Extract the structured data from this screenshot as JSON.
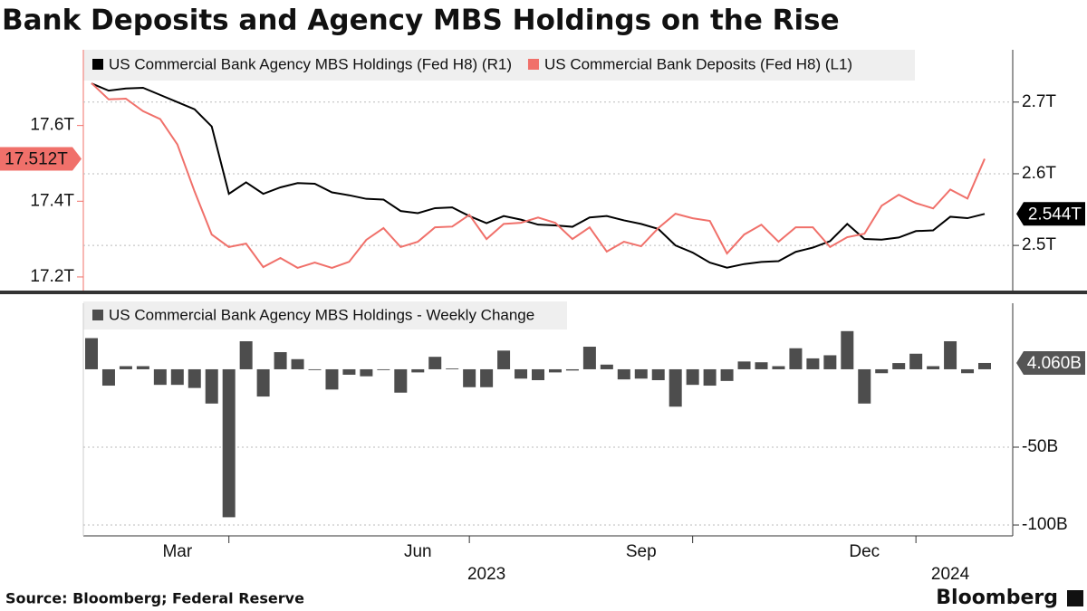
{
  "title": "Bank Deposits and Agency MBS Holdings on the Rise",
  "source": "Source:  Bloomberg; Federal Reserve",
  "brand": "Bloomberg",
  "chart_data": [
    {
      "type": "line",
      "ylim": [
        17.164,
        17.8
      ],
      "yticks": [
        {
          "value": 17.2,
          "label": "17.2T"
        },
        {
          "value": 17.4,
          "label": "17.4T"
        },
        {
          "value": 17.6,
          "label": "17.6T"
        }
      ],
      "y2lim": [
        2.437,
        2.773
      ],
      "y2ticks": [
        {
          "value": 2.5,
          "label": "2.5T"
        },
        {
          "value": 2.6,
          "label": "2.6T"
        },
        {
          "value": 2.7,
          "label": "2.7T"
        }
      ],
      "grid": true,
      "series": [
        {
          "name": "US Commercial Bank Agency MBS Holdings (Fed H8) (R1)",
          "color": "#000000",
          "axis": "y2",
          "last_label": "2.544T",
          "values": [
            2.726,
            2.716,
            2.719,
            2.72,
            2.71,
            2.7,
            2.69,
            2.666,
            2.572,
            2.588,
            2.572,
            2.581,
            2.587,
            2.586,
            2.574,
            2.57,
            2.565,
            2.564,
            2.548,
            2.545,
            2.552,
            2.553,
            2.541,
            2.531,
            2.541,
            2.536,
            2.529,
            2.528,
            2.526,
            2.539,
            2.541,
            2.535,
            2.53,
            2.523,
            2.5,
            2.49,
            2.476,
            2.469,
            2.474,
            2.477,
            2.478,
            2.491,
            2.497,
            2.506,
            2.53,
            2.509,
            2.508,
            2.511,
            2.52,
            2.521,
            2.54,
            2.538,
            2.544
          ]
        },
        {
          "name": "US Commercial Bank Deposits (Fed H8) (L1)",
          "color": "#f0706a",
          "axis": "y",
          "last_label": "17.512T",
          "values": [
            17.712,
            17.669,
            17.671,
            17.638,
            17.617,
            17.55,
            17.426,
            17.312,
            17.279,
            17.288,
            17.226,
            17.25,
            17.224,
            17.238,
            17.224,
            17.24,
            17.298,
            17.329,
            17.279,
            17.293,
            17.331,
            17.333,
            17.364,
            17.3,
            17.34,
            17.343,
            17.357,
            17.343,
            17.3,
            17.331,
            17.267,
            17.293,
            17.281,
            17.329,
            17.367,
            17.355,
            17.348,
            17.262,
            17.312,
            17.338,
            17.293,
            17.331,
            17.331,
            17.279,
            17.305,
            17.314,
            17.388,
            17.417,
            17.395,
            17.381,
            17.431,
            17.407,
            17.512
          ]
        }
      ]
    },
    {
      "type": "bar",
      "categories": [
        null,
        null,
        null,
        null,
        null,
        "Mar",
        null,
        null,
        null,
        null,
        null,
        null,
        null,
        null,
        null,
        null,
        null,
        null,
        null,
        "Jun",
        null,
        null,
        null,
        null,
        null,
        null,
        null,
        null,
        null,
        null,
        null,
        null,
        "Sep",
        null,
        null,
        null,
        null,
        null,
        null,
        null,
        null,
        null,
        null,
        null,
        null,
        "Dec",
        null,
        null,
        null,
        null,
        null,
        null,
        null
      ],
      "year_categories": [
        null,
        null,
        null,
        null,
        null,
        null,
        null,
        null,
        null,
        null,
        null,
        null,
        null,
        null,
        null,
        null,
        null,
        null,
        null,
        null,
        null,
        null,
        null,
        "2023",
        null,
        null,
        null,
        null,
        null,
        null,
        null,
        null,
        null,
        null,
        null,
        null,
        null,
        null,
        null,
        null,
        null,
        null,
        null,
        null,
        null,
        null,
        null,
        null,
        null,
        null,
        "2024",
        null,
        null
      ],
      "ylim": [
        -105.8,
        39.5
      ],
      "yticks": [
        {
          "value": -50,
          "label": "-50B"
        },
        {
          "value": -100,
          "label": "-100B"
        }
      ],
      "grid": true,
      "series": [
        {
          "name": "US Commercial Bank Agency MBS Holdings - Weekly Change",
          "color": "#4d4d4d",
          "last_label": "4.060B",
          "values": [
            20,
            -10.5,
            2,
            2,
            -10,
            -10,
            -12,
            -22,
            -95,
            18,
            -17.5,
            11,
            6.5,
            -0.5,
            -13,
            -3.5,
            -4.5,
            -0.5,
            -15,
            -2,
            8,
            0.5,
            -11.5,
            -11.5,
            12,
            -6,
            -7,
            -2,
            -0.8,
            14.5,
            3,
            -6.5,
            -6,
            -7,
            -24,
            -10,
            -10.5,
            -7.5,
            5,
            4.5,
            2,
            13.5,
            7,
            9,
            24.5,
            -22,
            -2.5,
            4,
            10,
            2,
            18,
            -2.5,
            4.06
          ]
        }
      ]
    }
  ]
}
